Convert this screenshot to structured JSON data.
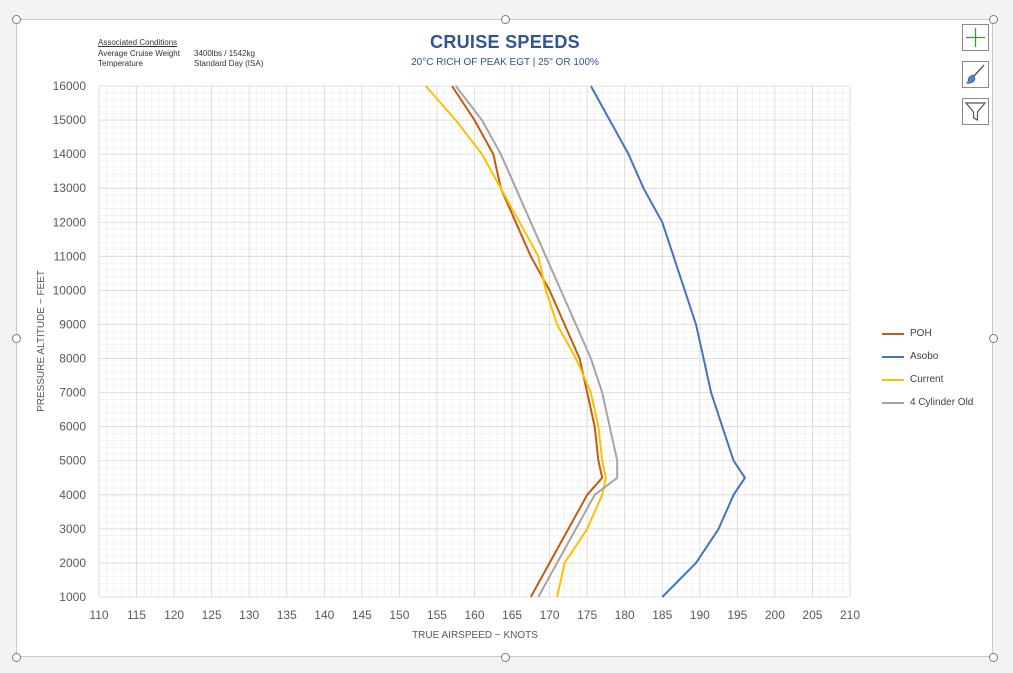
{
  "conditions": {
    "heading": "Associated Conditions",
    "rows": [
      {
        "label": "Average Cruise Weight",
        "value": "3400lbs / 1542kg"
      },
      {
        "label": "Temperature",
        "value": "Standard Day (ISA)"
      }
    ]
  },
  "tools": [
    {
      "name": "chart-elements-button",
      "icon": "plus-icon"
    },
    {
      "name": "chart-styles-button",
      "icon": "paintbrush-icon"
    },
    {
      "name": "chart-filters-button",
      "icon": "funnel-icon"
    }
  ],
  "colors": {
    "title": "#2f5597",
    "POH": "#c55a11",
    "Asobo": "#4472c4",
    "Current": "#ffc000",
    "Old": "#a5a5a5"
  },
  "chart_data": {
    "type": "line",
    "title": "CRUISE SPEEDS",
    "subtitle": "20°C RICH OF PEAK EGT | 25\" OR 100%",
    "xlabel": "TRUE AIRSPEED ~ KNOTS",
    "ylabel": "PRESSURE ALTITUDE ~ FEET",
    "xlim": [
      110,
      210
    ],
    "ylim": [
      1000,
      16000
    ],
    "x_ticks": [
      110,
      115,
      120,
      125,
      130,
      135,
      140,
      145,
      150,
      155,
      160,
      165,
      170,
      175,
      180,
      185,
      190,
      195,
      200,
      205,
      210
    ],
    "y_ticks": [
      1000,
      2000,
      3000,
      4000,
      5000,
      6000,
      7000,
      8000,
      9000,
      10000,
      11000,
      12000,
      13000,
      14000,
      15000,
      16000
    ],
    "grid": true,
    "legend_position": "right",
    "series": [
      {
        "name": "POH",
        "color": "#c55a11",
        "points": [
          [
            167.5,
            1000
          ],
          [
            170,
            2000
          ],
          [
            172.5,
            3000
          ],
          [
            175,
            4000
          ],
          [
            177,
            4500
          ],
          [
            176.5,
            5000
          ],
          [
            176,
            6000
          ],
          [
            175,
            7000
          ],
          [
            174,
            8000
          ],
          [
            172,
            9000
          ],
          [
            170,
            10000
          ],
          [
            167.5,
            11000
          ],
          [
            165.5,
            12000
          ],
          [
            163.5,
            13000
          ],
          [
            162.5,
            14000
          ],
          [
            160,
            15000
          ],
          [
            157,
            16000
          ]
        ]
      },
      {
        "name": "Asobo",
        "color": "#4472c4",
        "points": [
          [
            185,
            1000
          ],
          [
            189.5,
            2000
          ],
          [
            192.5,
            3000
          ],
          [
            194.5,
            4000
          ],
          [
            196,
            4500
          ],
          [
            194.5,
            5000
          ],
          [
            193,
            6000
          ],
          [
            191.5,
            7000
          ],
          [
            190.5,
            8000
          ],
          [
            189.5,
            9000
          ],
          [
            188,
            10000
          ],
          [
            186.5,
            11000
          ],
          [
            185,
            12000
          ],
          [
            182.5,
            13000
          ],
          [
            180.5,
            14000
          ],
          [
            178,
            15000
          ],
          [
            175.5,
            16000
          ]
        ]
      },
      {
        "name": "Current",
        "color": "#ffc000",
        "points": [
          [
            171,
            1000
          ],
          [
            172,
            2000
          ],
          [
            175,
            3000
          ],
          [
            177,
            4000
          ],
          [
            177.5,
            4500
          ],
          [
            177,
            5000
          ],
          [
            176.5,
            6000
          ],
          [
            175.5,
            7000
          ],
          [
            173.5,
            8000
          ],
          [
            171,
            9000
          ],
          [
            169.5,
            10000
          ],
          [
            168.5,
            11000
          ],
          [
            166,
            12000
          ],
          [
            163.5,
            13000
          ],
          [
            161,
            14000
          ],
          [
            157.5,
            15000
          ],
          [
            153.5,
            16000
          ]
        ]
      },
      {
        "name": "4 Cylinder Old",
        "color": "#a5a5a5",
        "points": [
          [
            168.5,
            1000
          ],
          [
            171,
            2000
          ],
          [
            173.5,
            3000
          ],
          [
            176,
            4000
          ],
          [
            179,
            4500
          ],
          [
            179,
            5000
          ],
          [
            178,
            6000
          ],
          [
            177,
            7000
          ],
          [
            175.5,
            8000
          ],
          [
            173.5,
            9000
          ],
          [
            171.5,
            10000
          ],
          [
            169.5,
            11000
          ],
          [
            167.5,
            12000
          ],
          [
            165.5,
            13000
          ],
          [
            163.5,
            14000
          ],
          [
            161,
            15000
          ],
          [
            157.5,
            16000
          ]
        ]
      }
    ]
  }
}
